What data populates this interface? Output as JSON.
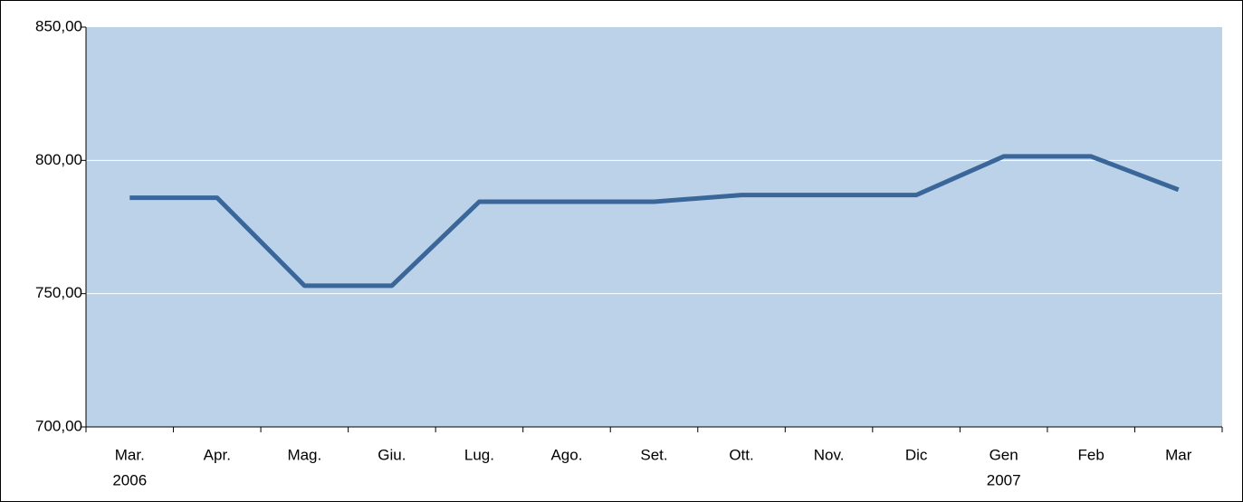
{
  "chart_data": {
    "type": "line",
    "categories": [
      "Mar.",
      "Apr.",
      "Mag.",
      "Giu.",
      "Lug.",
      "Ago.",
      "Set.",
      "Ott.",
      "Nov.",
      "Dic",
      "Gen",
      "Feb",
      "Mar"
    ],
    "category_years": [
      "2006",
      null,
      null,
      null,
      null,
      null,
      null,
      null,
      null,
      null,
      "2007",
      null,
      null
    ],
    "values": [
      786,
      786,
      753,
      753,
      784.5,
      784.5,
      784.5,
      787,
      787,
      787,
      801.5,
      801.5,
      789
    ],
    "color": "#3a6699",
    "ylim": [
      700,
      850
    ],
    "yticks": [
      {
        "value": 700,
        "label": "700,00"
      },
      {
        "value": 750,
        "label": "750,00"
      },
      {
        "value": 800,
        "label": "800,00"
      },
      {
        "value": 850,
        "label": "850,00"
      }
    ],
    "grid": true
  }
}
